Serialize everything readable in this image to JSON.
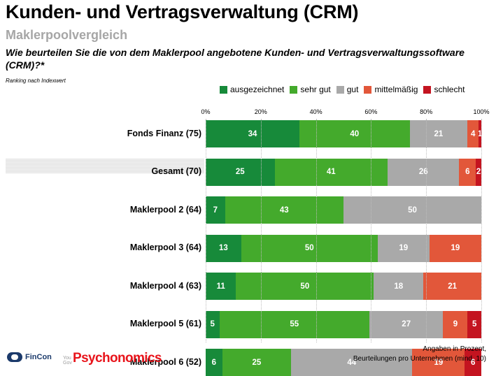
{
  "header": {
    "title": "Kunden- und Vertragsverwaltung (CRM)",
    "subtitle": "Maklerpoolvergleich",
    "question": "Wie beurteilen Sie die von dem Maklerpool angebotene Kunden- und Vertragsverwaltungssoftware (CRM)?*",
    "ranking_note": "Ranking nach Indexwert"
  },
  "footer": {
    "note_line1": "Angaben in Prozent,",
    "note_line2": "Beurteilungen pro Unternehmen (mind. 10)",
    "logo_fincon": "FinCon",
    "logo_yougov": "You Gov",
    "logo_psychonomics": "Psychonomics"
  },
  "chart_data": {
    "type": "bar",
    "orientation": "horizontal",
    "stacked": true,
    "xlim": [
      0,
      100
    ],
    "tick_labels": [
      "0%",
      "20%",
      "40%",
      "60%",
      "80%",
      "100%"
    ],
    "highlighted_category": "Gesamt (70)",
    "categories": [
      "Fonds Finanz (75)",
      "Gesamt (70)",
      "Maklerpool 2 (64)",
      "Maklerpool 3 (64)",
      "Maklerpool 4 (63)",
      "Maklerpool 5 (61)",
      "Maklerpool 6 (52)"
    ],
    "series": [
      {
        "name": "ausgezeichnet",
        "color": "#178a3a",
        "values": [
          34,
          25,
          7,
          13,
          11,
          5,
          6
        ]
      },
      {
        "name": "sehr gut",
        "color": "#44aa2c",
        "values": [
          40,
          41,
          43,
          50,
          50,
          55,
          25
        ]
      },
      {
        "name": "gut",
        "color": "#a9a9a9",
        "values": [
          21,
          26,
          50,
          19,
          18,
          27,
          44
        ]
      },
      {
        "name": "mittelmäßig",
        "color": "#e2573a",
        "values": [
          4,
          6,
          0,
          19,
          21,
          9,
          19
        ]
      },
      {
        "name": "schlecht",
        "color": "#c41420",
        "values": [
          1,
          2,
          0,
          0,
          0,
          5,
          6
        ]
      }
    ],
    "grid": true,
    "legend_position": "top"
  }
}
